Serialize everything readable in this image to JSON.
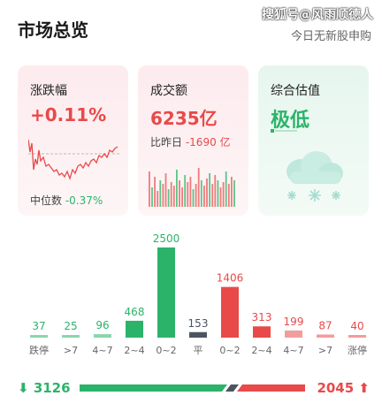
{
  "header": {
    "title": "市场总览",
    "subtitle": "今日无新股申购",
    "watermark": "搜狐号@风雨顺德人"
  },
  "cards": {
    "change": {
      "label": "涨跌幅",
      "value": "+0.11%",
      "median_label": "中位数",
      "median_value": "-0.37%"
    },
    "turnover": {
      "label": "成交额",
      "value": "6235亿",
      "compare_label": "比昨日",
      "compare_value": "-1690 亿"
    },
    "valuation": {
      "label": "综合估值",
      "value": "极低"
    }
  },
  "chart_data": {
    "type": "bar",
    "categories": [
      "跌停",
      ">7",
      "4~7",
      "2~4",
      "0~2",
      "平",
      "0~2",
      "2~4",
      "4~7",
      ">7",
      "涨停"
    ],
    "values": [
      37,
      25,
      96,
      468,
      2500,
      153,
      1406,
      313,
      199,
      87,
      40
    ],
    "colors": [
      "#2cb36a",
      "#2cb36a",
      "#2cb36a",
      "#2cb36a",
      "#2cb36a",
      "#4a5560",
      "#e84a4a",
      "#e84a4a",
      "#e84a4a",
      "#e84a4a",
      "#e84a4a"
    ]
  },
  "summary": {
    "down_arrow": "⬇",
    "down_count": "3126",
    "up_count": "2045",
    "up_arrow": "⬆"
  },
  "colors": {
    "up": "#e84a4a",
    "down": "#2cb36a",
    "flat": "#4a5560"
  }
}
